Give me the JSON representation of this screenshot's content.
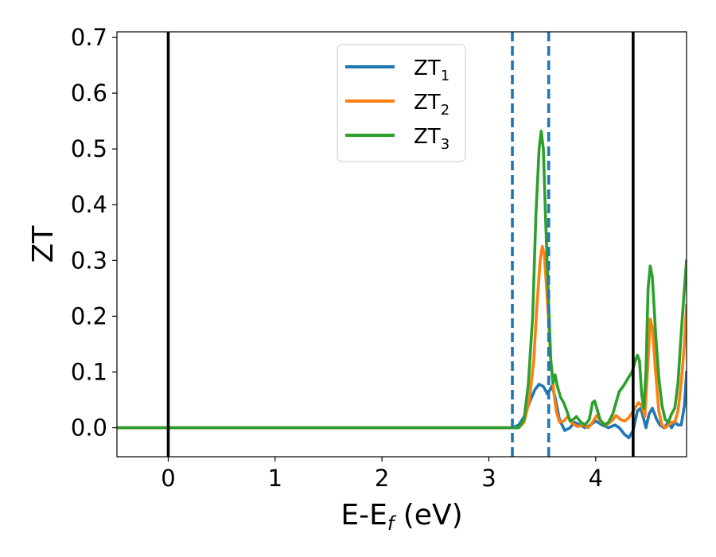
{
  "chart_data": {
    "type": "line",
    "xlabel": {
      "main": "E-E",
      "sub": "f",
      "unit": " (eV)"
    },
    "ylabel": "ZT",
    "xlim": [
      -0.48,
      4.85
    ],
    "ylim": [
      -0.052,
      0.71
    ],
    "xticks": [
      0,
      1,
      2,
      3,
      4
    ],
    "xtick_labels": [
      "0",
      "1",
      "2",
      "3",
      "4"
    ],
    "yticks": [
      0.0,
      0.1,
      0.2,
      0.3,
      0.4,
      0.5,
      0.6,
      0.7
    ],
    "ytick_labels": [
      "0.0",
      "0.1",
      "0.2",
      "0.3",
      "0.4",
      "0.5",
      "0.6",
      "0.7"
    ],
    "grid": false,
    "legend_placement": "upper-center",
    "vlines": [
      {
        "x": 0.0,
        "style": "solid",
        "color": "#000000"
      },
      {
        "x": 3.22,
        "style": "dashed",
        "color": "#1f77b4"
      },
      {
        "x": 3.56,
        "style": "dashed",
        "color": "#1f77b4"
      },
      {
        "x": 4.35,
        "style": "solid",
        "color": "#000000"
      }
    ],
    "series": [
      {
        "name": "ZT",
        "subscript": "1",
        "color": "#1f77b4",
        "points": [
          [
            -0.48,
            0
          ],
          [
            3.22,
            0
          ],
          [
            3.28,
            0.005
          ],
          [
            3.33,
            0.02
          ],
          [
            3.38,
            0.045
          ],
          [
            3.43,
            0.068
          ],
          [
            3.47,
            0.078
          ],
          [
            3.51,
            0.074
          ],
          [
            3.55,
            0.06
          ],
          [
            3.59,
            0.075
          ],
          [
            3.62,
            0.055
          ],
          [
            3.66,
            0.015
          ],
          [
            3.71,
            -0.005
          ],
          [
            3.76,
            0.0
          ],
          [
            3.8,
            0.01
          ],
          [
            3.85,
            0.005
          ],
          [
            3.9,
            0.0
          ],
          [
            3.95,
            0.005
          ],
          [
            4.0,
            0.012
          ],
          [
            4.06,
            0.005
          ],
          [
            4.12,
            0.0
          ],
          [
            4.18,
            0.005
          ],
          [
            4.22,
            0.0
          ],
          [
            4.27,
            -0.012
          ],
          [
            4.31,
            -0.018
          ],
          [
            4.35,
            -0.005
          ],
          [
            4.39,
            0.03
          ],
          [
            4.42,
            0.035
          ],
          [
            4.45,
            0.015
          ],
          [
            4.47,
            0.0
          ],
          [
            4.5,
            0.025
          ],
          [
            4.53,
            0.035
          ],
          [
            4.57,
            0.015
          ],
          [
            4.6,
            0.005
          ],
          [
            4.64,
            0.0
          ],
          [
            4.68,
            0.01
          ],
          [
            4.71,
            0.0
          ],
          [
            4.74,
            0.01
          ],
          [
            4.77,
            0.005
          ],
          [
            4.8,
            0.005
          ],
          [
            4.83,
            0.04
          ],
          [
            4.85,
            0.1
          ]
        ]
      },
      {
        "name": "ZT",
        "subscript": "2",
        "color": "#ff7f0e",
        "points": [
          [
            -0.48,
            0
          ],
          [
            3.28,
            0
          ],
          [
            3.33,
            0.01
          ],
          [
            3.38,
            0.05
          ],
          [
            3.42,
            0.12
          ],
          [
            3.45,
            0.22
          ],
          [
            3.48,
            0.3
          ],
          [
            3.5,
            0.325
          ],
          [
            3.52,
            0.31
          ],
          [
            3.55,
            0.22
          ],
          [
            3.58,
            0.12
          ],
          [
            3.61,
            0.06
          ],
          [
            3.63,
            0.03
          ],
          [
            3.66,
            0.01
          ],
          [
            3.7,
            0.012
          ],
          [
            3.74,
            0.02
          ],
          [
            3.78,
            0.008
          ],
          [
            3.83,
            0.002
          ],
          [
            3.88,
            0.005
          ],
          [
            3.93,
            0.0
          ],
          [
            3.97,
            0.01
          ],
          [
            4.01,
            0.022
          ],
          [
            4.05,
            0.01
          ],
          [
            4.1,
            0.005
          ],
          [
            4.15,
            0.012
          ],
          [
            4.19,
            0.022
          ],
          [
            4.23,
            0.015
          ],
          [
            4.27,
            0.012
          ],
          [
            4.31,
            0.018
          ],
          [
            4.35,
            0.03
          ],
          [
            4.4,
            0.045
          ],
          [
            4.43,
            0.04
          ],
          [
            4.46,
            0.02
          ],
          [
            4.49,
            0.12
          ],
          [
            4.51,
            0.195
          ],
          [
            4.53,
            0.18
          ],
          [
            4.56,
            0.1
          ],
          [
            4.59,
            0.03
          ],
          [
            4.62,
            0.005
          ],
          [
            4.65,
            0.0
          ],
          [
            4.68,
            0.005
          ],
          [
            4.71,
            0.01
          ],
          [
            4.74,
            0.01
          ],
          [
            4.77,
            0.03
          ],
          [
            4.8,
            0.08
          ],
          [
            4.83,
            0.15
          ],
          [
            4.85,
            0.22
          ]
        ]
      },
      {
        "name": "ZT",
        "subscript": "3",
        "color": "#2ca02c",
        "points": [
          [
            -0.48,
            0
          ],
          [
            3.28,
            0
          ],
          [
            3.33,
            0.015
          ],
          [
            3.37,
            0.08
          ],
          [
            3.41,
            0.2
          ],
          [
            3.44,
            0.38
          ],
          [
            3.47,
            0.5
          ],
          [
            3.49,
            0.532
          ],
          [
            3.51,
            0.5
          ],
          [
            3.53,
            0.38
          ],
          [
            3.56,
            0.22
          ],
          [
            3.58,
            0.12
          ],
          [
            3.6,
            0.08
          ],
          [
            3.62,
            0.095
          ],
          [
            3.64,
            0.075
          ],
          [
            3.67,
            0.055
          ],
          [
            3.7,
            0.045
          ],
          [
            3.73,
            0.03
          ],
          [
            3.76,
            0.012
          ],
          [
            3.79,
            0.015
          ],
          [
            3.82,
            0.02
          ],
          [
            3.86,
            0.01
          ],
          [
            3.9,
            0.005
          ],
          [
            3.94,
            0.015
          ],
          [
            3.97,
            0.045
          ],
          [
            3.99,
            0.048
          ],
          [
            4.01,
            0.035
          ],
          [
            4.04,
            0.015
          ],
          [
            4.08,
            0.005
          ],
          [
            4.12,
            0.01
          ],
          [
            4.16,
            0.025
          ],
          [
            4.19,
            0.045
          ],
          [
            4.22,
            0.065
          ],
          [
            4.26,
            0.075
          ],
          [
            4.3,
            0.088
          ],
          [
            4.34,
            0.1
          ],
          [
            4.37,
            0.12
          ],
          [
            4.39,
            0.13
          ],
          [
            4.41,
            0.12
          ],
          [
            4.43,
            0.06
          ],
          [
            4.45,
            0.035
          ],
          [
            4.47,
            0.1
          ],
          [
            4.49,
            0.25
          ],
          [
            4.51,
            0.29
          ],
          [
            4.53,
            0.27
          ],
          [
            4.56,
            0.17
          ],
          [
            4.59,
            0.09
          ],
          [
            4.62,
            0.04
          ],
          [
            4.65,
            0.015
          ],
          [
            4.68,
            0.01
          ],
          [
            4.71,
            0.025
          ],
          [
            4.74,
            0.035
          ],
          [
            4.77,
            0.08
          ],
          [
            4.8,
            0.17
          ],
          [
            4.83,
            0.25
          ],
          [
            4.85,
            0.3
          ]
        ]
      }
    ]
  }
}
